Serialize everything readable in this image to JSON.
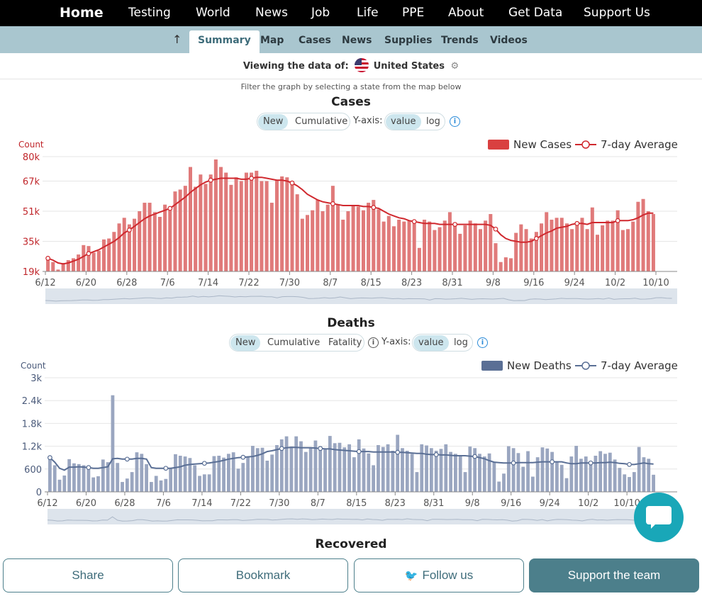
{
  "nav": {
    "items": [
      "Home",
      "Testing",
      "World",
      "News",
      "Job",
      "Life",
      "PPE",
      "About",
      "Get Data",
      "Support Us"
    ]
  },
  "subnav": {
    "up_icon": "arrow-up-icon",
    "tabs": [
      "Summary",
      "Map",
      "Cases",
      "News",
      "Supplies",
      "Trends",
      "Videos"
    ],
    "active": "Summary"
  },
  "viewing": {
    "prefix": "Viewing the data of:",
    "country": "United States",
    "flag_icon": "us-flag-icon",
    "settings_icon": "gear-icon"
  },
  "hint": "Filter the graph by selecting a state from the map below",
  "cases": {
    "title": "Cases",
    "toggles": [
      "New",
      "Cumulative"
    ],
    "yaxis_label": "Y-axis:",
    "scale": [
      "value",
      "log"
    ]
  },
  "deaths": {
    "title": "Deaths",
    "toggles": [
      "New",
      "Cumulative",
      "Fatality"
    ],
    "yaxis_label": "Y-axis:",
    "scale": [
      "value",
      "log"
    ]
  },
  "recovered": {
    "title": "Recovered"
  },
  "buttons": {
    "share": "Share",
    "bookmark": "Bookmark",
    "follow": "Follow us",
    "support": "Support the team"
  },
  "colors": {
    "cases_bar": "#e07a7a",
    "cases_line": "#d0282e",
    "deaths_bar": "#9aa6c0",
    "deaths_line": "#5a6f95",
    "accent": "#4c7f8b"
  },
  "chart_data": [
    {
      "type": "bar",
      "title": "Cases",
      "ylabel": "Count",
      "yticks": [
        "19k",
        "35k",
        "51k",
        "67k",
        "80k"
      ],
      "ylim": [
        19000,
        80000
      ],
      "xticks": [
        "6/12",
        "6/20",
        "6/28",
        "7/6",
        "7/14",
        "7/22",
        "7/30",
        "8/7",
        "8/15",
        "8/23",
        "8/31",
        "9/8",
        "9/16",
        "9/24",
        "10/2",
        "10/10"
      ],
      "legend": [
        "New Cases",
        "7-day Average"
      ],
      "legend_position": "top-right",
      "series": [
        {
          "name": "New Cases",
          "values": [
            26500,
            24000,
            20000,
            23500,
            25000,
            26000,
            28000,
            33000,
            32500,
            29000,
            30000,
            36000,
            36500,
            40000,
            44500,
            47500,
            44000,
            47000,
            51000,
            55500,
            55500,
            50500,
            48000,
            54500,
            52500,
            61500,
            62500,
            64500,
            74500,
            64000,
            70500,
            65500,
            70500,
            78500,
            74500,
            71500,
            65000,
            69000,
            67000,
            71500,
            71500,
            72500,
            67000,
            67000,
            55500,
            67500,
            69500,
            69000,
            67000,
            60000,
            47000,
            49000,
            51500,
            57000,
            51000,
            54500,
            64500,
            54500,
            46500,
            51000,
            54000,
            53500,
            51500,
            55500,
            57000,
            52000,
            45500,
            48500,
            43000,
            46500,
            45500,
            46000,
            44500,
            31500,
            46500,
            45500,
            41000,
            42500,
            46000,
            50500,
            45000,
            39000,
            43500,
            46000,
            44500,
            41500,
            46000,
            49500,
            34000,
            24000,
            26500,
            26000,
            39500,
            44000,
            41500,
            36500,
            40000,
            44500,
            50500,
            46500,
            47500,
            47500,
            44500,
            41500,
            44000,
            47500,
            41500,
            53000,
            38500,
            43500,
            46000,
            46000,
            51500,
            41000,
            41500,
            45500,
            56000,
            57500,
            51000,
            49500
          ]
        },
        {
          "name": "7-day Average",
          "values": [
            26000,
            25000,
            23500,
            23000,
            23500,
            24500,
            25500,
            27000,
            28500,
            29500,
            30500,
            32000,
            33500,
            35000,
            37000,
            39500,
            41000,
            43000,
            45000,
            47000,
            48500,
            49500,
            50500,
            51500,
            52500,
            54500,
            56500,
            58500,
            61000,
            63000,
            65000,
            66500,
            67500,
            68000,
            68500,
            68500,
            68500,
            68500,
            68000,
            68000,
            68500,
            69000,
            69000,
            68500,
            68000,
            67500,
            67500,
            67000,
            66000,
            64500,
            62500,
            60000,
            58500,
            57000,
            56000,
            55500,
            55000,
            54500,
            54000,
            54000,
            54000,
            54000,
            53500,
            53500,
            53000,
            52500,
            51000,
            49500,
            48500,
            47500,
            47000,
            46000,
            45500,
            45000,
            44500,
            44500,
            44500,
            44000,
            44000,
            44000,
            44000,
            44000,
            44000,
            44000,
            44000,
            44000,
            44000,
            43500,
            41500,
            38500,
            36500,
            35500,
            35000,
            34500,
            34500,
            35000,
            36500,
            38000,
            39500,
            40500,
            42000,
            42500,
            43000,
            44000,
            44500,
            44500,
            44000,
            45000,
            45000,
            45000,
            45000,
            45000,
            46000,
            46000,
            46000,
            46500,
            47500,
            49000,
            50000,
            50000
          ]
        }
      ]
    },
    {
      "type": "bar",
      "title": "Deaths",
      "ylabel": "Count",
      "yticks": [
        "0",
        "600",
        "1.2k",
        "1.8k",
        "2.4k",
        "3k"
      ],
      "ylim": [
        0,
        3000
      ],
      "xticks": [
        "6/12",
        "6/20",
        "6/28",
        "7/6",
        "7/14",
        "7/22",
        "7/30",
        "8/7",
        "8/15",
        "8/23",
        "8/31",
        "9/8",
        "9/16",
        "9/24",
        "10/2",
        "10/10"
      ],
      "legend": [
        "New Deaths",
        "7-day Average"
      ],
      "legend_position": "top-right",
      "series": [
        {
          "name": "New Deaths",
          "values": [
            880,
            700,
            320,
            430,
            860,
            750,
            730,
            700,
            690,
            380,
            410,
            850,
            780,
            2540,
            760,
            260,
            350,
            520,
            1040,
            1000,
            730,
            260,
            420,
            300,
            340,
            620,
            990,
            950,
            930,
            890,
            700,
            420,
            460,
            460,
            940,
            950,
            900,
            1000,
            1040,
            610,
            760,
            920,
            1210,
            1150,
            1160,
            820,
            980,
            1230,
            1380,
            1460,
            1190,
            1460,
            1330,
            1050,
            1170,
            1350,
            1200,
            1120,
            1470,
            1280,
            1290,
            1170,
            1250,
            910,
            1380,
            1140,
            1010,
            700,
            1230,
            1180,
            1250,
            1080,
            1500,
            1150,
            1080,
            1000,
            520,
            1250,
            1220,
            1150,
            1080,
            1130,
            1250,
            1050,
            1000,
            960,
            520,
            1190,
            1150,
            1000,
            930,
            1010,
            790,
            270,
            480,
            1200,
            1150,
            1020,
            660,
            1070,
            400,
            910,
            1170,
            1140,
            1050,
            800,
            710,
            360,
            930,
            1210,
            870,
            930,
            750,
            950,
            1070,
            1000,
            1030,
            850,
            630,
            460,
            390,
            520,
            1180,
            910,
            870,
            450
          ]
        },
        {
          "name": "7-day Average",
          "values": [
            900,
            780,
            620,
            570,
            650,
            650,
            660,
            650,
            640,
            620,
            620,
            640,
            660,
            870,
            880,
            860,
            860,
            860,
            880,
            880,
            860,
            640,
            620,
            620,
            620,
            620,
            640,
            660,
            700,
            720,
            730,
            740,
            750,
            760,
            780,
            800,
            830,
            860,
            880,
            900,
            910,
            920,
            930,
            960,
            1000,
            1060,
            1080,
            1110,
            1140,
            1160,
            1170,
            1170,
            1160,
            1160,
            1160,
            1150,
            1140,
            1130,
            1130,
            1110,
            1100,
            1090,
            1080,
            1070,
            1060,
            1060,
            1060,
            1050,
            1050,
            1050,
            1050,
            1050,
            1040,
            1040,
            1030,
            1020,
            1010,
            1010,
            990,
            980,
            980,
            970,
            970,
            960,
            950,
            950,
            950,
            940,
            930,
            900,
            870,
            820,
            780,
            770,
            760,
            760,
            760,
            770,
            770,
            770,
            770,
            780,
            790,
            790,
            790,
            790,
            790,
            760,
            740,
            740,
            760,
            760,
            760,
            760,
            770,
            770,
            780,
            770,
            750,
            740,
            720,
            720,
            740,
            760,
            740,
            730
          ]
        }
      ]
    }
  ]
}
